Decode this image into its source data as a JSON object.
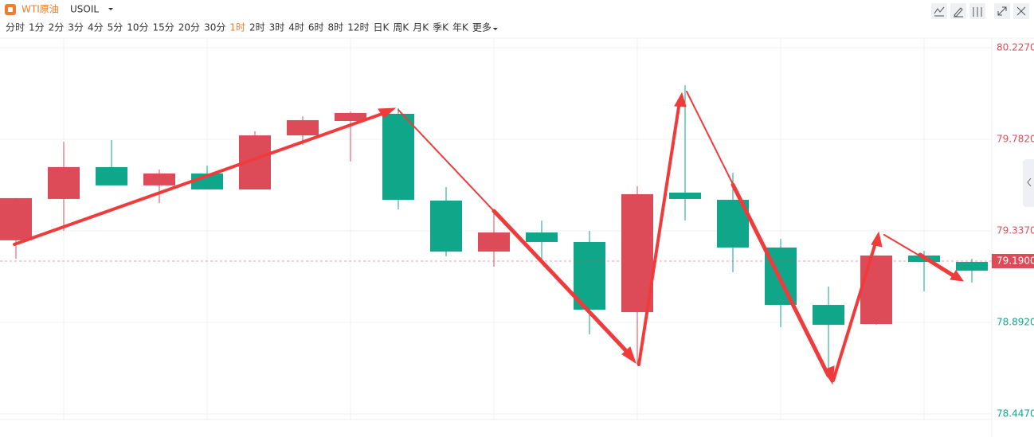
{
  "header": {
    "title": "WTI原油",
    "symbol": "USOIL"
  },
  "intervals": [
    "分时",
    "1分",
    "2分",
    "3分",
    "4分",
    "5分",
    "10分",
    "15分",
    "20分",
    "30分",
    "1时",
    "2时",
    "3时",
    "4时",
    "6时",
    "8时",
    "12时",
    "日K",
    "周K",
    "月K",
    "季K",
    "年K",
    "更多"
  ],
  "active_interval": "1时",
  "chart_data": {
    "type": "candlestick",
    "categories": [
      null,
      null,
      null,
      null,
      null,
      null,
      null,
      null,
      null,
      null,
      null,
      null,
      null,
      null,
      null,
      null,
      null,
      null,
      null,
      null,
      null
    ],
    "open": [
      79.291,
      79.492,
      79.647,
      79.558,
      79.616,
      79.538,
      79.801,
      79.871,
      79.906,
      79.484,
      79.236,
      79.329,
      79.283,
      78.942,
      79.523,
      79.488,
      79.256,
      78.977,
      78.884,
      79.217,
      79.186
    ],
    "high": [
      79.496,
      79.77,
      79.778,
      79.635,
      79.654,
      79.821,
      79.894,
      79.917,
      79.933,
      79.55,
      79.422,
      79.387,
      79.337,
      79.554,
      80.045,
      79.619,
      79.298,
      79.066,
      79.217,
      79.24,
      79.201
    ],
    "low": [
      79.201,
      79.337,
      79.558,
      79.472,
      79.538,
      79.538,
      79.755,
      79.674,
      79.441,
      79.213,
      79.163,
      79.194,
      78.834,
      78.687,
      79.387,
      79.136,
      78.869,
      78.64,
      78.88,
      79.043,
      79.085
    ],
    "close": [
      79.496,
      79.647,
      79.558,
      79.616,
      79.538,
      79.801,
      79.875,
      79.91,
      79.488,
      79.236,
      79.329,
      79.283,
      78.954,
      79.515,
      79.492,
      79.256,
      78.977,
      78.88,
      79.217,
      79.186,
      79.143
    ],
    "up_color": "#dd4b59",
    "down_color": "#0fa68a",
    "ylim": [
      78.42,
      80.285
    ],
    "yticks": [
      {
        "value": 78.447,
        "label": "78.4470"
      },
      {
        "value": 78.892,
        "label": "78.8920"
      },
      {
        "value": 79.337,
        "label": "79.3370"
      },
      {
        "value": 79.782,
        "label": "79.7820"
      },
      {
        "value": 80.227,
        "label": "80.2270"
      }
    ],
    "price_line": {
      "value": 79.19,
      "label": "79.1900"
    },
    "grid": true
  }
}
